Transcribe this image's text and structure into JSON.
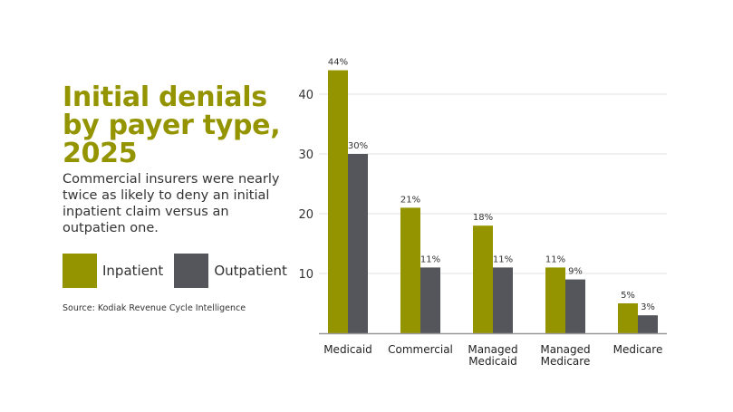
{
  "chart_data": {
    "type": "bar",
    "title": "Initial denials by payer type, 2025",
    "subtitle": "Commercial insurers were nearly twice as likely to deny an initial inpatient claim versus an outpatien one.",
    "source": "Source: Kodiak Revenue Cycle Intelligence",
    "categories": [
      [
        "Medicaid"
      ],
      [
        "Commercial"
      ],
      [
        "Managed",
        "Medicaid"
      ],
      [
        "Managed",
        "Medicare"
      ],
      [
        "Medicare"
      ]
    ],
    "series": [
      {
        "name": "Inpatient",
        "color": "#949400",
        "values": [
          44,
          21,
          18,
          11,
          5
        ],
        "labels": [
          "44%",
          "21%",
          "18%",
          "11%",
          "5%"
        ]
      },
      {
        "name": "Outpatient",
        "color": "#54565b",
        "values": [
          30,
          11,
          11,
          9,
          3
        ],
        "labels": [
          "30%",
          "11%",
          "11%",
          "9%",
          "3%"
        ]
      }
    ],
    "yticks": [
      10,
      20,
      30,
      40
    ],
    "ylim": [
      0,
      45
    ],
    "grid": true,
    "legend": "left"
  }
}
